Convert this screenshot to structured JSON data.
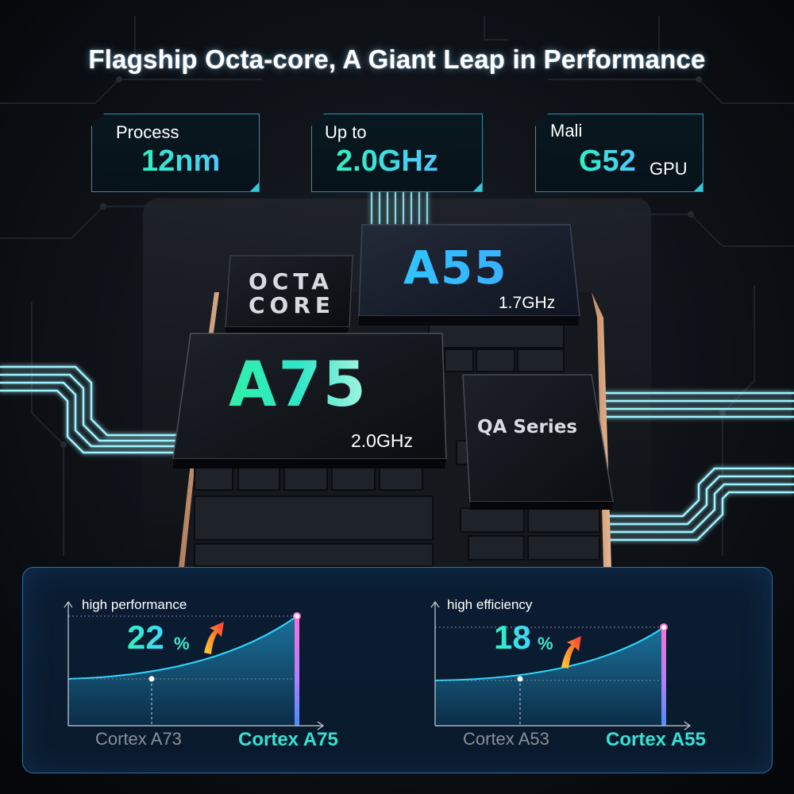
{
  "headline": "Flagship Octa-core, A Giant Leap in Performance",
  "specs": [
    {
      "label": "Process",
      "value": "12nm",
      "unit": ""
    },
    {
      "label": "Up to",
      "value": "2.0GHz",
      "unit": ""
    },
    {
      "label": "Mali",
      "value": "G52",
      "unit": "GPU"
    }
  ],
  "chip": {
    "octa_line1": "OCTA",
    "octa_line2": "CORE",
    "a55_name": "A55",
    "a55_freq": "1.7GHz",
    "a75_name": "A75",
    "a75_freq": "2.0GHz",
    "qa_name": "QA Series"
  },
  "comparisons": [
    {
      "metric": "high performance",
      "gain": "22",
      "percent": "%",
      "from": "Cortex A73",
      "to": "Cortex A75"
    },
    {
      "metric": "high efficiency",
      "gain": "18",
      "percent": "%",
      "from": "Cortex A53",
      "to": "Cortex A55"
    }
  ],
  "colors": {
    "accent_teal": "#2ff0c0",
    "accent_cyan": "#3fd8ff",
    "panel_bg": "#0a1a2c",
    "panel_border": "#2f6f9f"
  }
}
